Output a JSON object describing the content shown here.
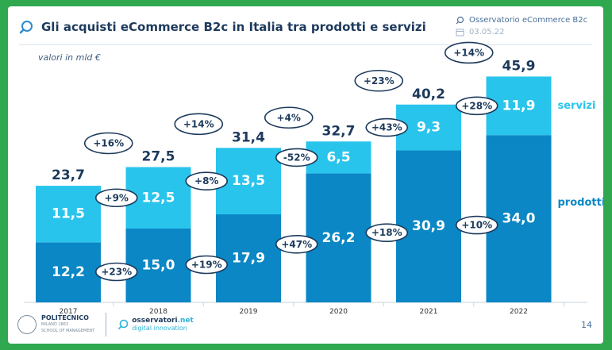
{
  "header": {
    "title": "Gli acquisti eCommerce B2c in Italia tra prodotti e servizi",
    "source": "Osservatorio eCommerce B2c",
    "date": "03.05.22"
  },
  "unit_label": "valori in mld €",
  "footer": {
    "polimi_name": "POLITECNICO",
    "polimi_sub": "MILANO 1863",
    "polimi_school": "SCHOOL OF MANAGEMENT",
    "oss_name_a": "osservatori",
    "oss_name_b": ".net",
    "oss_sub": "digital innovation",
    "page_number": "14"
  },
  "colors": {
    "prodotti": "#0a87c4",
    "servizi": "#29c4ec",
    "text_dark": "#1d3a5c",
    "label_light": "#ffffff",
    "frame": "#2fa84f"
  },
  "chart_data": {
    "type": "bar",
    "stacked": true,
    "categories": [
      "2017",
      "2018",
      "2019",
      "2020",
      "2021",
      "2022"
    ],
    "series": [
      {
        "name": "prodotti",
        "values": [
          12.2,
          15.0,
          17.9,
          26.2,
          30.9,
          34.0
        ],
        "labels": [
          "12,2",
          "15,0",
          "17,9",
          "26,2",
          "30,9",
          "34,0"
        ],
        "color": "#0a87c4"
      },
      {
        "name": "servizi",
        "values": [
          11.5,
          12.5,
          13.5,
          6.5,
          9.3,
          11.9
        ],
        "labels": [
          "11,5",
          "12,5",
          "13,5",
          "6,5",
          "9,3",
          "11,9"
        ],
        "color": "#29c4ec"
      }
    ],
    "totals": [
      23.7,
      27.5,
      31.4,
      32.7,
      40.2,
      45.9
    ],
    "total_labels": [
      "23,7",
      "27,5",
      "31,4",
      "32,7",
      "40,2",
      "45,9"
    ],
    "growth_total": [
      "+16%",
      "+14%",
      "+4%",
      "+23%",
      "+14%"
    ],
    "growth_prodotti": [
      "+23%",
      "+19%",
      "+47%",
      "+18%",
      "+10%"
    ],
    "growth_servizi": [
      "+9%",
      "+8%",
      "-52%",
      "+43%",
      "+28%"
    ],
    "ylim": [
      0,
      50
    ],
    "legend_position": "right"
  }
}
